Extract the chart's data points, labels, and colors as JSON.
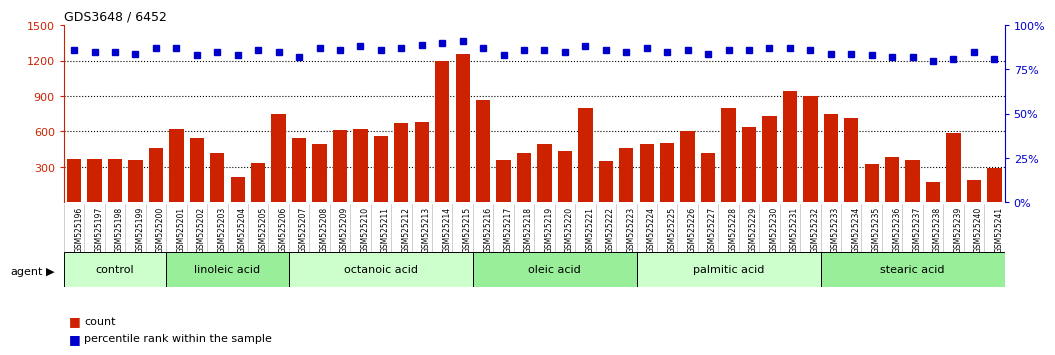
{
  "title": "GDS3648 / 6452",
  "bar_color": "#cc2200",
  "dot_color": "#0000cc",
  "ylim_left": [
    0,
    1500
  ],
  "ylim_right": [
    0,
    100
  ],
  "yticks_left": [
    300,
    600,
    900,
    1200,
    1500
  ],
  "yticks_right": [
    0,
    25,
    50,
    75,
    100
  ],
  "gridlines": [
    300,
    600,
    900,
    1200
  ],
  "samples": [
    "GSM525196",
    "GSM525197",
    "GSM525198",
    "GSM525199",
    "GSM525200",
    "GSM525201",
    "GSM525202",
    "GSM525203",
    "GSM525204",
    "GSM525205",
    "GSM525206",
    "GSM525207",
    "GSM525208",
    "GSM525209",
    "GSM525210",
    "GSM525211",
    "GSM525212",
    "GSM525213",
    "GSM525214",
    "GSM525215",
    "GSM525216",
    "GSM525217",
    "GSM525218",
    "GSM525219",
    "GSM525220",
    "GSM525221",
    "GSM525222",
    "GSM525223",
    "GSM525224",
    "GSM525225",
    "GSM525226",
    "GSM525227",
    "GSM525228",
    "GSM525229",
    "GSM525230",
    "GSM525231",
    "GSM525232",
    "GSM525233",
    "GSM525234",
    "GSM525235",
    "GSM525236",
    "GSM525237",
    "GSM525238",
    "GSM525239",
    "GSM525240",
    "GSM525241"
  ],
  "counts": [
    370,
    370,
    370,
    355,
    460,
    620,
    545,
    420,
    210,
    330,
    750,
    545,
    490,
    615,
    620,
    560,
    670,
    680,
    1200,
    1260,
    870,
    355,
    420,
    490,
    430,
    800,
    350,
    460,
    490,
    500,
    600,
    420,
    800,
    640,
    730,
    940,
    900,
    750,
    710,
    325,
    380,
    360,
    175,
    590,
    185,
    290
  ],
  "percentiles": [
    86,
    85,
    85,
    84,
    87,
    87,
    83,
    85,
    83,
    86,
    85,
    82,
    87,
    86,
    88,
    86,
    87,
    89,
    90,
    91,
    87,
    83,
    86,
    86,
    85,
    88,
    86,
    85,
    87,
    85,
    86,
    84,
    86,
    86,
    87,
    87,
    86,
    84,
    84,
    83,
    82,
    82,
    80,
    81,
    85,
    81
  ],
  "groups": [
    {
      "label": "control",
      "start": 0,
      "end": 5,
      "color": "#ccffcc"
    },
    {
      "label": "linoleic acid",
      "start": 5,
      "end": 11,
      "color": "#99ee99"
    },
    {
      "label": "octanoic acid",
      "start": 11,
      "end": 20,
      "color": "#ccffcc"
    },
    {
      "label": "oleic acid",
      "start": 20,
      "end": 28,
      "color": "#99ee99"
    },
    {
      "label": "palmitic acid",
      "start": 28,
      "end": 37,
      "color": "#ccffcc"
    },
    {
      "label": "stearic acid",
      "start": 37,
      "end": 46,
      "color": "#99ee99"
    }
  ],
  "legend_count_color": "#cc2200",
  "legend_pct_color": "#0000cc",
  "bg_color": "#ffffff",
  "plot_bg_color": "#ffffff",
  "tick_bg_color": "#d8d8d8"
}
